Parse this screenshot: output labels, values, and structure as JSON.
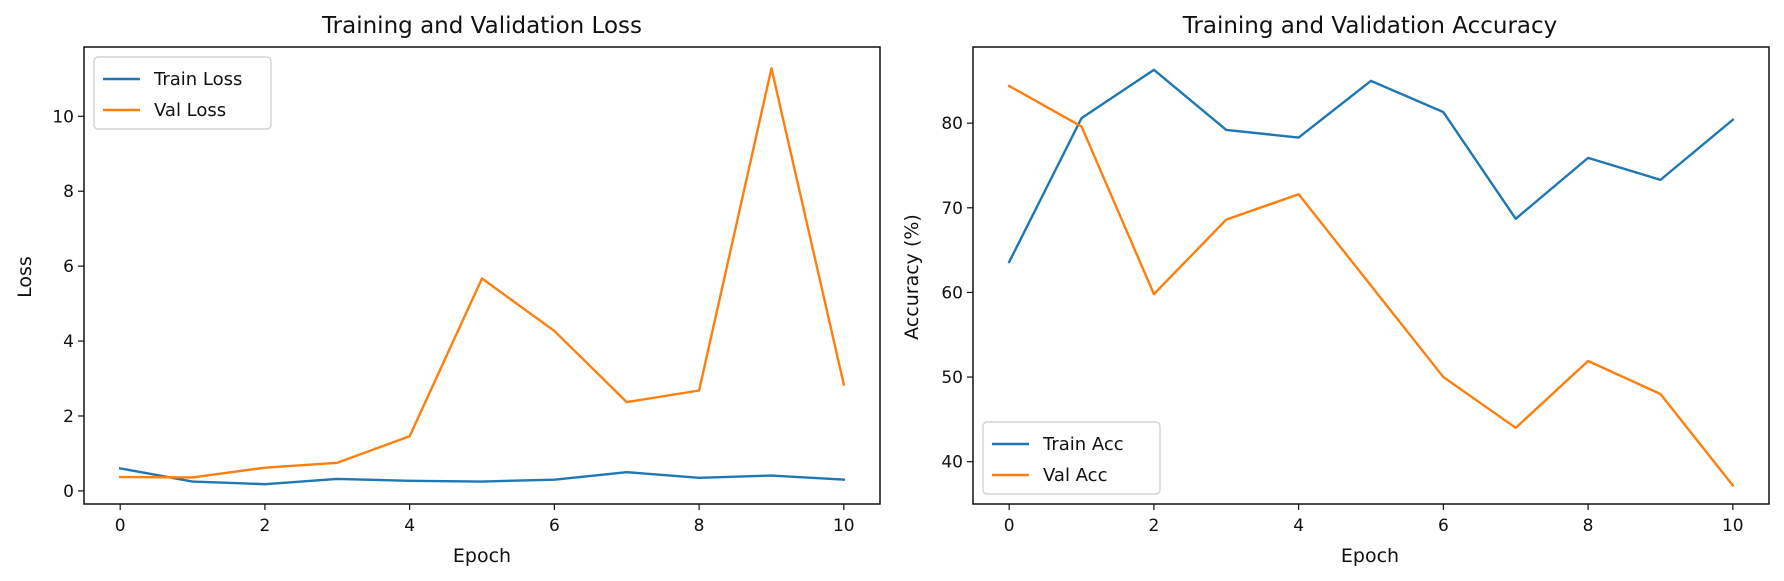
{
  "chart_data": [
    {
      "type": "line",
      "title": "Training and Validation Loss",
      "xlabel": "Epoch",
      "ylabel": "Loss",
      "xlim": [
        -0.5,
        10.5
      ],
      "ylim": [
        -0.35,
        11.85
      ],
      "xticks": [
        "0",
        "2",
        "4",
        "6",
        "8",
        "10"
      ],
      "yticks": [
        "0",
        "2",
        "4",
        "6",
        "8",
        "10"
      ],
      "legend_position": "top-left",
      "grid": false,
      "x": [
        0,
        1,
        2,
        3,
        4,
        5,
        6,
        7,
        8,
        9,
        10
      ],
      "series": [
        {
          "name": "Train Loss",
          "color": "#1f77b4",
          "values": [
            0.6,
            0.25,
            0.18,
            0.32,
            0.27,
            0.25,
            0.3,
            0.5,
            0.35,
            0.41,
            0.3
          ]
        },
        {
          "name": "Val Loss",
          "color": "#ff7f0e",
          "values": [
            0.37,
            0.36,
            0.62,
            0.75,
            1.46,
            5.67,
            4.27,
            2.37,
            2.68,
            11.28,
            2.84
          ]
        }
      ]
    },
    {
      "type": "line",
      "title": "Training and Validation Accuracy",
      "xlabel": "Epoch",
      "ylabel": "Accuracy (%)",
      "xlim": [
        -0.5,
        10.5
      ],
      "ylim": [
        35.0,
        89.0
      ],
      "xticks": [
        "0",
        "2",
        "4",
        "6",
        "8",
        "10"
      ],
      "yticks": [
        "40",
        "50",
        "60",
        "70",
        "80"
      ],
      "legend_position": "bottom-left",
      "grid": false,
      "x": [
        0,
        1,
        2,
        3,
        4,
        5,
        6,
        7,
        8,
        9,
        10
      ],
      "series": [
        {
          "name": "Train Acc",
          "color": "#1f77b4",
          "values": [
            63.6,
            80.6,
            86.3,
            79.2,
            78.3,
            85.0,
            81.3,
            68.7,
            75.9,
            73.3,
            80.4
          ]
        },
        {
          "name": "Val Acc",
          "color": "#ff7f0e",
          "values": [
            84.4,
            79.6,
            59.8,
            68.6,
            71.6,
            60.8,
            50.0,
            44.0,
            51.9,
            48.0,
            37.2
          ]
        }
      ]
    }
  ]
}
